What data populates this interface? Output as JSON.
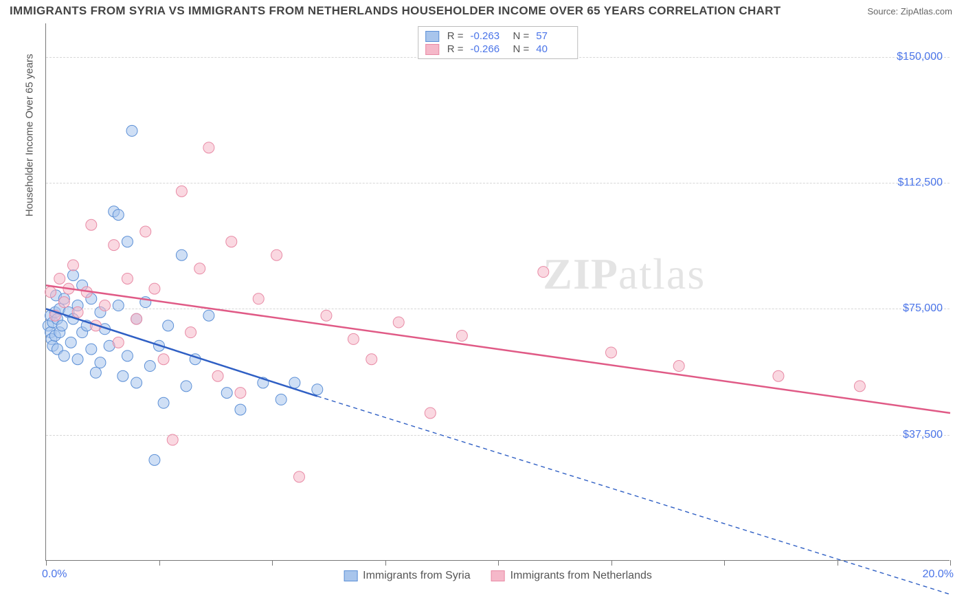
{
  "header": {
    "title": "IMMIGRANTS FROM SYRIA VS IMMIGRANTS FROM NETHERLANDS HOUSEHOLDER INCOME OVER 65 YEARS CORRELATION CHART",
    "source_prefix": "Source: ",
    "source_name": "ZipAtlas.com"
  },
  "chart": {
    "type": "scatter-with-regression",
    "ylabel": "Householder Income Over 65 years",
    "xlim": [
      0,
      20
    ],
    "ylim": [
      0,
      160000
    ],
    "x_ticks_pct": [
      0,
      2.5,
      5,
      7.5,
      10,
      12.5,
      15,
      17.5,
      20
    ],
    "x_tick_labels": {
      "0": "0.0%",
      "20": "20.0%"
    },
    "y_gridlines": [
      37500,
      75000,
      112500,
      150000
    ],
    "y_tick_labels": {
      "37500": "$37,500",
      "75000": "$75,000",
      "112500": "$112,500",
      "150000": "$150,000"
    },
    "background_color": "#ffffff",
    "grid_color": "#d6d6d6",
    "axis_color": "#777777",
    "label_color": "#4a74e8",
    "marker_radius": 8,
    "marker_opacity": 0.55,
    "line_width_solid": 2.5,
    "line_width_dash": 1.4,
    "dash_pattern": "6 5",
    "watermark": "ZIPatlas",
    "series": [
      {
        "key": "syria",
        "label": "Immigrants from Syria",
        "color_fill": "#a8c5ec",
        "color_stroke": "#5b8fd6",
        "line_color": "#2f5fc4",
        "R": "-0.263",
        "N": "57",
        "regression": {
          "x1": 0,
          "y1": 75000,
          "x2": 6,
          "y2": 49000,
          "extend_x": 20,
          "extend_y": -10000
        },
        "points": [
          [
            0.05,
            70000
          ],
          [
            0.1,
            68000
          ],
          [
            0.1,
            73000
          ],
          [
            0.12,
            66000
          ],
          [
            0.15,
            71000
          ],
          [
            0.15,
            64000
          ],
          [
            0.2,
            74000
          ],
          [
            0.2,
            67000
          ],
          [
            0.22,
            79000
          ],
          [
            0.25,
            72000
          ],
          [
            0.25,
            63000
          ],
          [
            0.3,
            68000
          ],
          [
            0.3,
            75000
          ],
          [
            0.35,
            70000
          ],
          [
            0.4,
            78000
          ],
          [
            0.4,
            61000
          ],
          [
            0.5,
            74000
          ],
          [
            0.55,
            65000
          ],
          [
            0.6,
            85000
          ],
          [
            0.6,
            72000
          ],
          [
            0.7,
            76000
          ],
          [
            0.7,
            60000
          ],
          [
            0.8,
            68000
          ],
          [
            0.8,
            82000
          ],
          [
            0.9,
            70000
          ],
          [
            1.0,
            63000
          ],
          [
            1.0,
            78000
          ],
          [
            1.1,
            56000
          ],
          [
            1.2,
            74000
          ],
          [
            1.2,
            59000
          ],
          [
            1.3,
            69000
          ],
          [
            1.4,
            64000
          ],
          [
            1.5,
            104000
          ],
          [
            1.6,
            103000
          ],
          [
            1.6,
            76000
          ],
          [
            1.7,
            55000
          ],
          [
            1.8,
            95000
          ],
          [
            1.8,
            61000
          ],
          [
            1.9,
            128000
          ],
          [
            2.0,
            72000
          ],
          [
            2.0,
            53000
          ],
          [
            2.2,
            77000
          ],
          [
            2.3,
            58000
          ],
          [
            2.4,
            30000
          ],
          [
            2.5,
            64000
          ],
          [
            2.6,
            47000
          ],
          [
            2.7,
            70000
          ],
          [
            3.0,
            91000
          ],
          [
            3.1,
            52000
          ],
          [
            3.3,
            60000
          ],
          [
            3.6,
            73000
          ],
          [
            4.0,
            50000
          ],
          [
            4.3,
            45000
          ],
          [
            4.8,
            53000
          ],
          [
            5.2,
            48000
          ],
          [
            5.5,
            53000
          ],
          [
            6.0,
            51000
          ]
        ]
      },
      {
        "key": "netherlands",
        "label": "Immigrants from Netherlands",
        "color_fill": "#f5b8c9",
        "color_stroke": "#e88aa5",
        "line_color": "#e05a86",
        "R": "-0.266",
        "N": "40",
        "regression": {
          "x1": 0,
          "y1": 82000,
          "x2": 20,
          "y2": 44000
        },
        "points": [
          [
            0.1,
            80000
          ],
          [
            0.2,
            73000
          ],
          [
            0.3,
            84000
          ],
          [
            0.4,
            77000
          ],
          [
            0.5,
            81000
          ],
          [
            0.6,
            88000
          ],
          [
            0.7,
            74000
          ],
          [
            0.9,
            80000
          ],
          [
            1.0,
            100000
          ],
          [
            1.1,
            70000
          ],
          [
            1.3,
            76000
          ],
          [
            1.5,
            94000
          ],
          [
            1.6,
            65000
          ],
          [
            1.8,
            84000
          ],
          [
            2.0,
            72000
          ],
          [
            2.2,
            98000
          ],
          [
            2.4,
            81000
          ],
          [
            2.6,
            60000
          ],
          [
            2.8,
            36000
          ],
          [
            3.0,
            110000
          ],
          [
            3.2,
            68000
          ],
          [
            3.4,
            87000
          ],
          [
            3.6,
            123000
          ],
          [
            3.8,
            55000
          ],
          [
            4.1,
            95000
          ],
          [
            4.3,
            50000
          ],
          [
            4.7,
            78000
          ],
          [
            5.1,
            91000
          ],
          [
            5.6,
            25000
          ],
          [
            6.2,
            73000
          ],
          [
            6.8,
            66000
          ],
          [
            7.2,
            60000
          ],
          [
            7.8,
            71000
          ],
          [
            8.5,
            44000
          ],
          [
            9.2,
            67000
          ],
          [
            11.0,
            86000
          ],
          [
            12.5,
            62000
          ],
          [
            14.0,
            58000
          ],
          [
            16.2,
            55000
          ],
          [
            18.0,
            52000
          ]
        ]
      }
    ],
    "legend_bottom": [
      {
        "label": "Immigrants from Syria",
        "fill": "#a8c5ec",
        "stroke": "#5b8fd6"
      },
      {
        "label": "Immigrants from Netherlands",
        "fill": "#f5b8c9",
        "stroke": "#e88aa5"
      }
    ]
  }
}
